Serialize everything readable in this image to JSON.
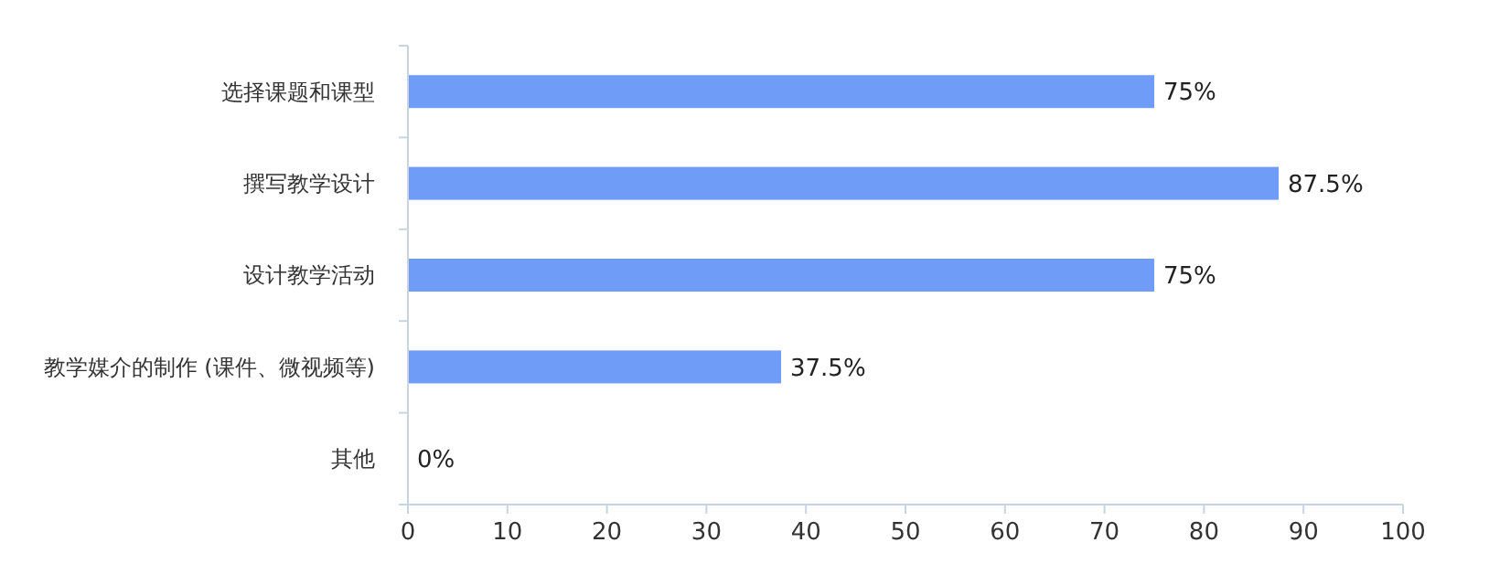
{
  "chart_data": {
    "type": "bar",
    "orientation": "horizontal",
    "categories": [
      "选择课题和课型",
      "撰写教学设计",
      "设计教学活动",
      "教学媒介的制作 (课件、微视频等)",
      "其他"
    ],
    "values": [
      75,
      87.5,
      75,
      37.5,
      0
    ],
    "value_labels": [
      "75%",
      "87.5%",
      "75%",
      "37.5%",
      "0%"
    ],
    "color": "#6f9cf7",
    "xlim": [
      0,
      100
    ],
    "xticks": [
      0,
      10,
      20,
      30,
      40,
      50,
      60,
      70,
      80,
      90,
      100
    ],
    "grid": false
  }
}
